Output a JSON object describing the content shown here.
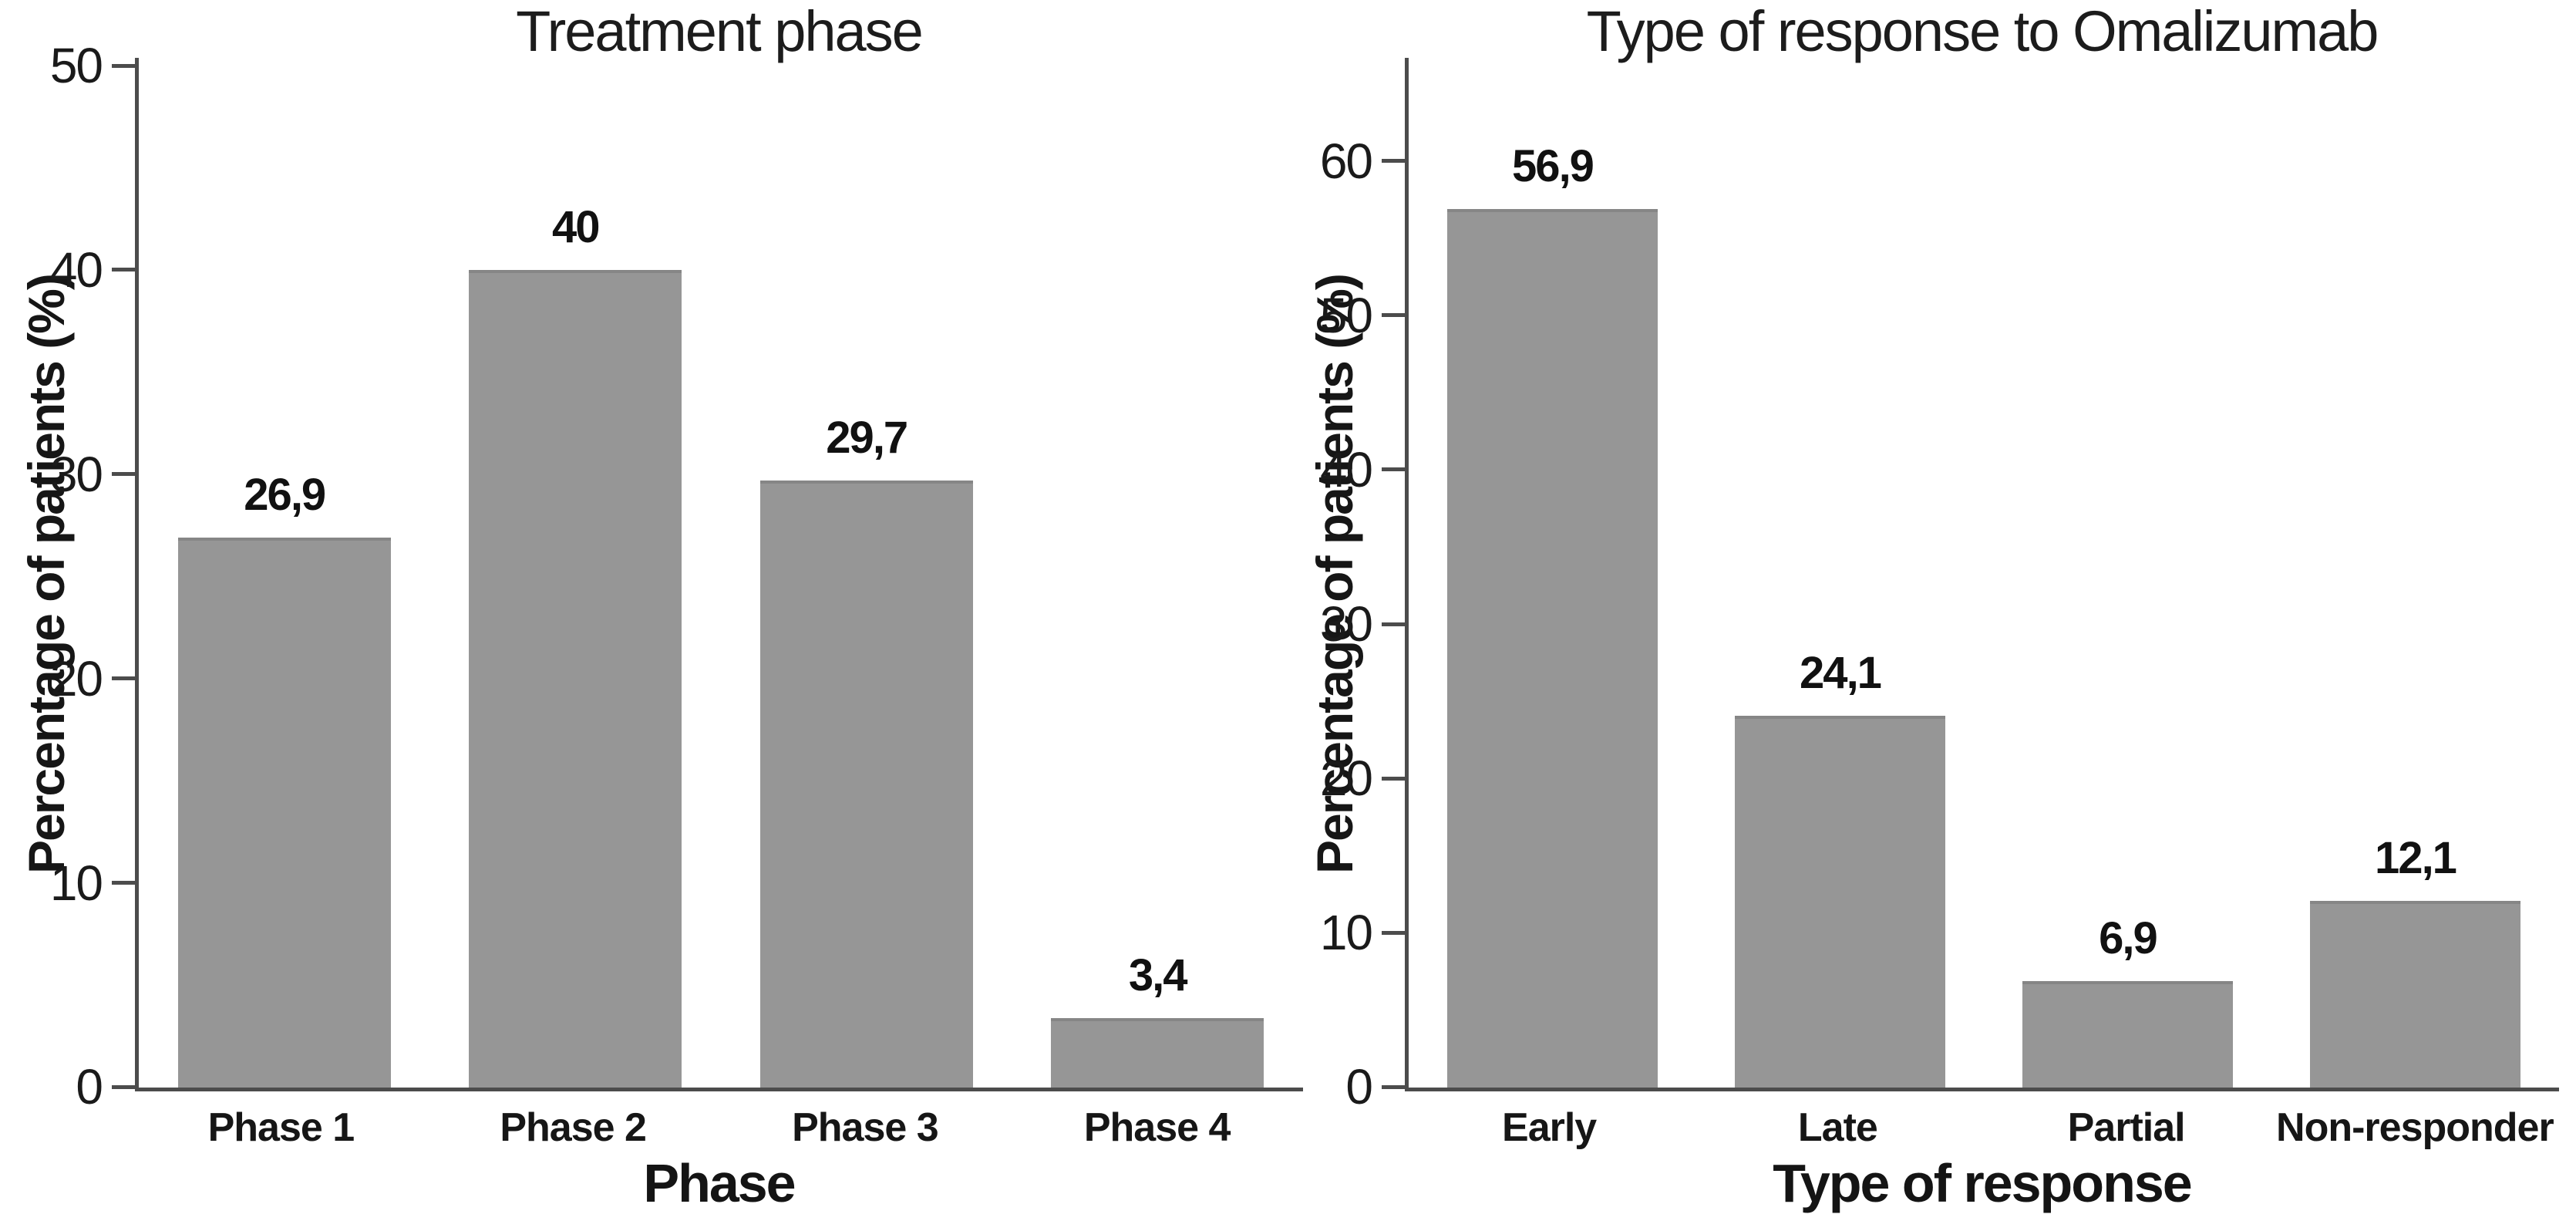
{
  "figure": {
    "background": "#ffffff"
  },
  "colors": {
    "bar_fill": "#969696",
    "bar_edge": "#868686",
    "axis_line": "#4c4c4c",
    "text": "#1a1a1a"
  },
  "chart_data": [
    {
      "type": "bar",
      "title": "Treatment phase",
      "xlabel": "Phase",
      "ylabel": "Percentage of patients (%)",
      "categories": [
        "Phase 1",
        "Phase 2",
        "Phase 3",
        "Phase 4"
      ],
      "values": [
        26.9,
        40,
        29.7,
        3.4
      ],
      "value_labels": [
        "26,9",
        "40",
        "29,7",
        "3,4"
      ],
      "yticks": [
        0,
        10,
        20,
        30,
        40,
        50
      ],
      "ylim": [
        0,
        50.4
      ],
      "grid": false,
      "legend": "none",
      "bar_color": "#969696"
    },
    {
      "type": "bar",
      "title": "Type of response to Omalizumab",
      "xlabel": "Type of response",
      "ylabel": "Percentage of patients (%)",
      "categories": [
        "Early",
        "Late",
        "Partial",
        "Non-responder"
      ],
      "values": [
        56.9,
        24.1,
        6.9,
        12.1
      ],
      "value_labels": [
        "56,9",
        "24,1",
        "6,9",
        "12,1"
      ],
      "yticks": [
        0,
        10,
        20,
        30,
        40,
        50,
        60
      ],
      "ylim": [
        0,
        66.7
      ],
      "grid": false,
      "legend": "none",
      "bar_color": "#969696"
    }
  ]
}
